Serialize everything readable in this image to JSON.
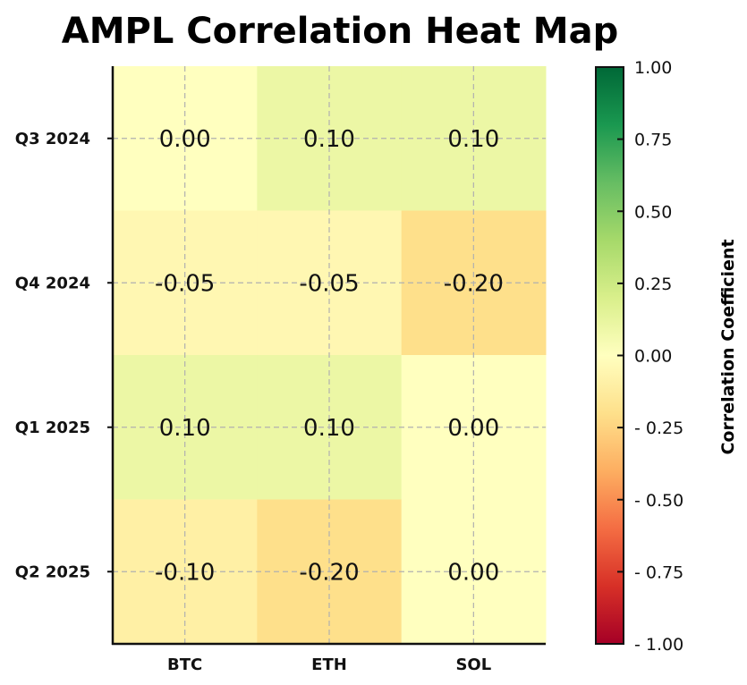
{
  "chart_data": {
    "type": "heatmap",
    "title": "AMPL Correlation Heat Map",
    "xlabel": "",
    "ylabel": "",
    "x_categories": [
      "BTC",
      "ETH",
      "SOL"
    ],
    "y_categories": [
      "Q3 2024",
      "Q4 2024",
      "Q1 2025",
      "Q2 2025"
    ],
    "values": [
      [
        0.0,
        0.1,
        0.1
      ],
      [
        -0.05,
        -0.05,
        -0.2
      ],
      [
        0.1,
        0.1,
        0.0
      ],
      [
        -0.1,
        -0.2,
        0.0
      ]
    ],
    "cell_labels": [
      [
        "0.00",
        "0.10",
        "0.10"
      ],
      [
        "-0.05",
        "-0.05",
        "-0.20"
      ],
      [
        "0.10",
        "0.10",
        "0.00"
      ],
      [
        "-0.10",
        "-0.20",
        "0.00"
      ]
    ],
    "colormap": "RdYlGn",
    "vmin": -1.0,
    "vmax": 1.0,
    "grid": true,
    "colorbar": {
      "label": "Correlation Coefficient",
      "ticks": [
        1.0,
        0.75,
        0.5,
        0.25,
        0.0,
        -0.25,
        -0.5,
        -0.75,
        -1.0
      ],
      "tick_labels": [
        "1.00",
        "0.75",
        "0.50",
        "0.25",
        "0.00",
        "- 0.25",
        "- 0.50",
        "- 0.75",
        "- 1.00"
      ],
      "position": "right"
    },
    "colors": {
      "stops": [
        "#a50026",
        "#d73027",
        "#f46d43",
        "#fdae61",
        "#fee08b",
        "#ffffbf",
        "#d9ef8b",
        "#a6d96a",
        "#66bd63",
        "#1a9850",
        "#006837"
      ]
    }
  }
}
